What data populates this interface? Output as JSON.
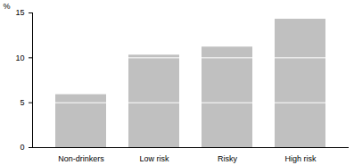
{
  "chart_data": {
    "type": "bar",
    "categories": [
      "Non-drinkers",
      "Low risk",
      "Risky",
      "High risk"
    ],
    "values": [
      5.9,
      10.3,
      11.2,
      14.3
    ],
    "color": "#c0c0c0",
    "y_label": "%",
    "ylim": [
      0,
      15
    ],
    "yticks": [
      0,
      5,
      10,
      15
    ],
    "grid": true
  }
}
